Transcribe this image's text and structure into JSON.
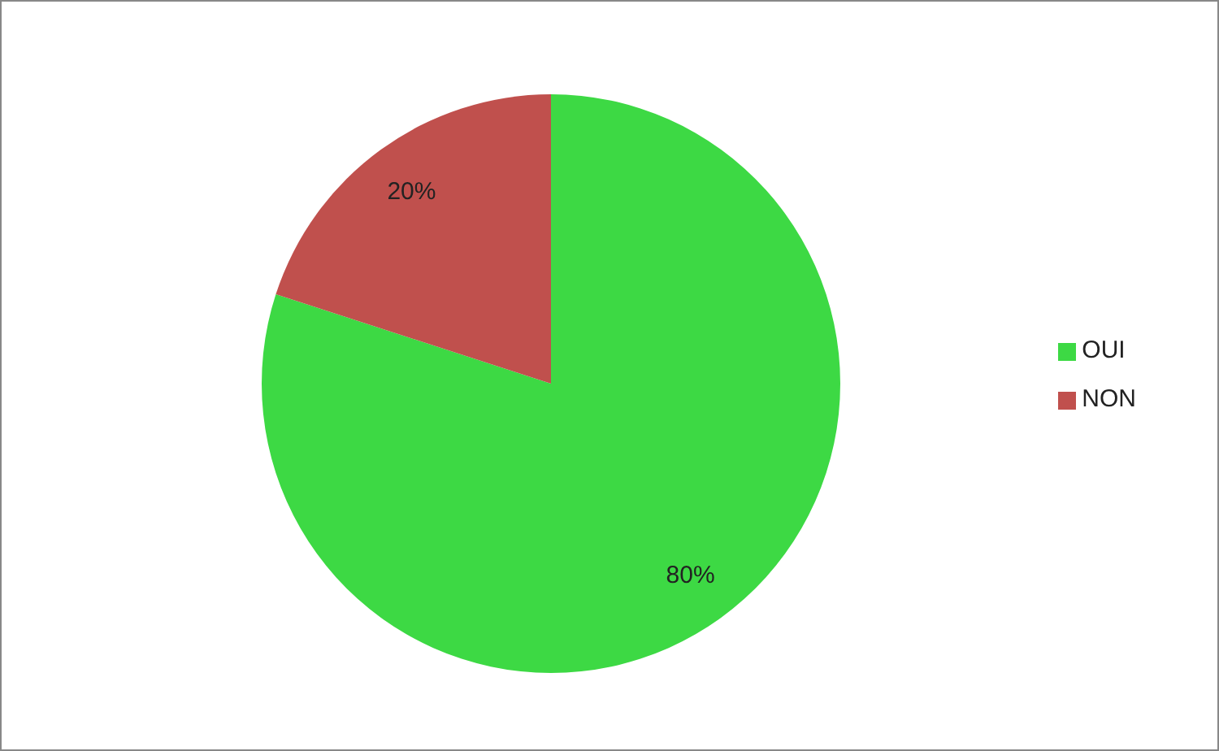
{
  "chart_data": {
    "type": "pie",
    "categories": [
      "OUI",
      "NON"
    ],
    "values": [
      80,
      20
    ],
    "colors": [
      "#3dd944",
      "#c0504d"
    ],
    "value_labels": [
      "80%",
      "20%"
    ],
    "legend": "right"
  }
}
